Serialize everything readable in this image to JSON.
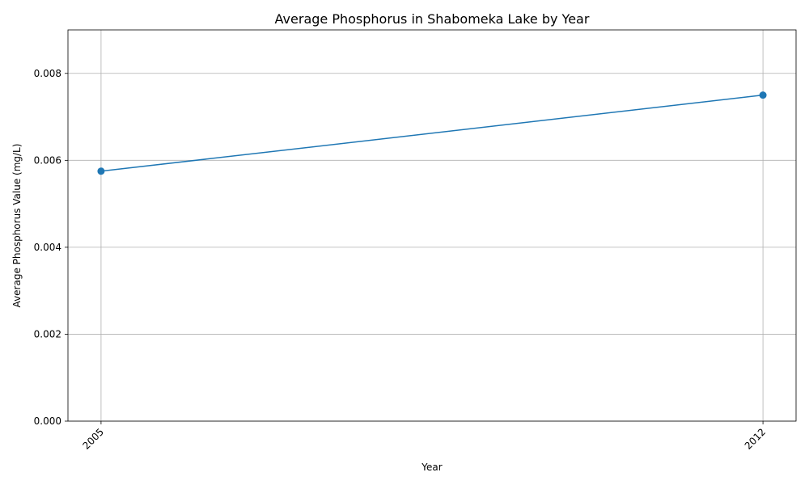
{
  "chart_data": {
    "type": "line",
    "title": "Average Phosphorus in Shabomeka Lake by Year",
    "xlabel": "Year",
    "ylabel": "Average Phosphorus Value (mg/L)",
    "x": [
      2005,
      2012
    ],
    "x_tick_labels": [
      "2005",
      "2012"
    ],
    "xlim": [
      2004.65,
      2012.35
    ],
    "ylim": [
      0,
      0.009
    ],
    "y_ticks": [
      0,
      0.002,
      0.004,
      0.006,
      0.008
    ],
    "y_tick_labels": [
      "0.000",
      "0.002",
      "0.004",
      "0.006",
      "0.008"
    ],
    "grid": true,
    "series": [
      {
        "name": "Average Phosphorus",
        "values": [
          0.00575,
          0.0075
        ],
        "color": "#1f77b4",
        "marker": "circle"
      }
    ]
  }
}
